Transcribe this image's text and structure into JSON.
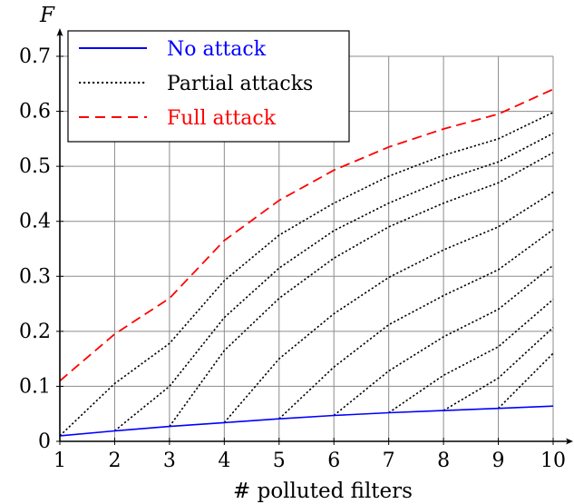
{
  "chart_data": {
    "type": "line",
    "title": "",
    "xlabel": "# polluted filters",
    "ylabel": "F",
    "xlim": [
      1,
      10
    ],
    "ylim": [
      0,
      0.7
    ],
    "x_ticks": [
      "1",
      "2",
      "3",
      "4",
      "5",
      "6",
      "7",
      "8",
      "9",
      "10"
    ],
    "y_ticks": [
      "0",
      "0.1",
      "0.2",
      "0.3",
      "0.4",
      "0.5",
      "0.6",
      "0.7"
    ],
    "grid": true,
    "legend_position": "top-left",
    "legend": [
      {
        "label": "No attack",
        "style": "solid",
        "color": "#0000ff"
      },
      {
        "label": "Partial attacks",
        "style": "dotted",
        "color": "#000000"
      },
      {
        "label": "Full attack",
        "style": "dashed",
        "color": "#ff0000"
      }
    ],
    "series": [
      {
        "style": "solid",
        "color": "#0000ff",
        "points": [
          [
            1,
            0.01
          ],
          [
            2,
            0.019
          ],
          [
            3,
            0.027
          ],
          [
            4,
            0.034
          ],
          [
            5,
            0.041
          ],
          [
            6,
            0.047
          ],
          [
            7,
            0.052
          ],
          [
            8,
            0.056
          ],
          [
            9,
            0.06
          ],
          [
            10,
            0.064
          ]
        ]
      },
      {
        "style": "dashed",
        "color": "#ff0000",
        "points": [
          [
            1,
            0.11
          ],
          [
            2,
            0.195
          ],
          [
            3,
            0.26
          ],
          [
            4,
            0.365
          ],
          [
            5,
            0.438
          ],
          [
            6,
            0.493
          ],
          [
            7,
            0.535
          ],
          [
            8,
            0.568
          ],
          [
            9,
            0.595
          ],
          [
            10,
            0.64
          ]
        ]
      },
      {
        "style": "dotted",
        "color": "#000000",
        "points": [
          [
            1,
            0.01
          ],
          [
            2,
            0.105
          ],
          [
            3,
            0.178
          ],
          [
            4,
            0.292
          ],
          [
            5,
            0.375
          ],
          [
            6,
            0.433
          ],
          [
            7,
            0.482
          ],
          [
            8,
            0.52
          ],
          [
            9,
            0.55
          ],
          [
            10,
            0.598
          ]
        ]
      },
      {
        "style": "dotted",
        "color": "#000000",
        "points": [
          [
            2,
            0.019
          ],
          [
            3,
            0.1
          ],
          [
            4,
            0.225
          ],
          [
            5,
            0.315
          ],
          [
            6,
            0.383
          ],
          [
            7,
            0.433
          ],
          [
            8,
            0.475
          ],
          [
            9,
            0.508
          ],
          [
            10,
            0.56
          ]
        ]
      },
      {
        "style": "dotted",
        "color": "#000000",
        "points": [
          [
            3,
            0.027
          ],
          [
            4,
            0.165
          ],
          [
            5,
            0.26
          ],
          [
            6,
            0.333
          ],
          [
            7,
            0.39
          ],
          [
            8,
            0.433
          ],
          [
            9,
            0.47
          ],
          [
            10,
            0.525
          ]
        ]
      },
      {
        "style": "dotted",
        "color": "#000000",
        "points": [
          [
            4,
            0.034
          ],
          [
            5,
            0.15
          ],
          [
            6,
            0.232
          ],
          [
            7,
            0.298
          ],
          [
            8,
            0.348
          ],
          [
            9,
            0.39
          ],
          [
            10,
            0.453
          ]
        ]
      },
      {
        "style": "dotted",
        "color": "#000000",
        "points": [
          [
            5,
            0.041
          ],
          [
            6,
            0.135
          ],
          [
            7,
            0.212
          ],
          [
            8,
            0.265
          ],
          [
            9,
            0.312
          ],
          [
            10,
            0.385
          ]
        ]
      },
      {
        "style": "dotted",
        "color": "#000000",
        "points": [
          [
            6,
            0.047
          ],
          [
            7,
            0.128
          ],
          [
            8,
            0.19
          ],
          [
            9,
            0.24
          ],
          [
            10,
            0.32
          ]
        ]
      },
      {
        "style": "dotted",
        "color": "#000000",
        "points": [
          [
            7,
            0.052
          ],
          [
            8,
            0.12
          ],
          [
            9,
            0.172
          ],
          [
            10,
            0.258
          ]
        ]
      },
      {
        "style": "dotted",
        "color": "#000000",
        "points": [
          [
            8,
            0.056
          ],
          [
            9,
            0.115
          ],
          [
            10,
            0.207
          ]
        ]
      },
      {
        "style": "dotted",
        "color": "#000000",
        "points": [
          [
            9,
            0.06
          ],
          [
            10,
            0.16
          ]
        ]
      }
    ]
  }
}
